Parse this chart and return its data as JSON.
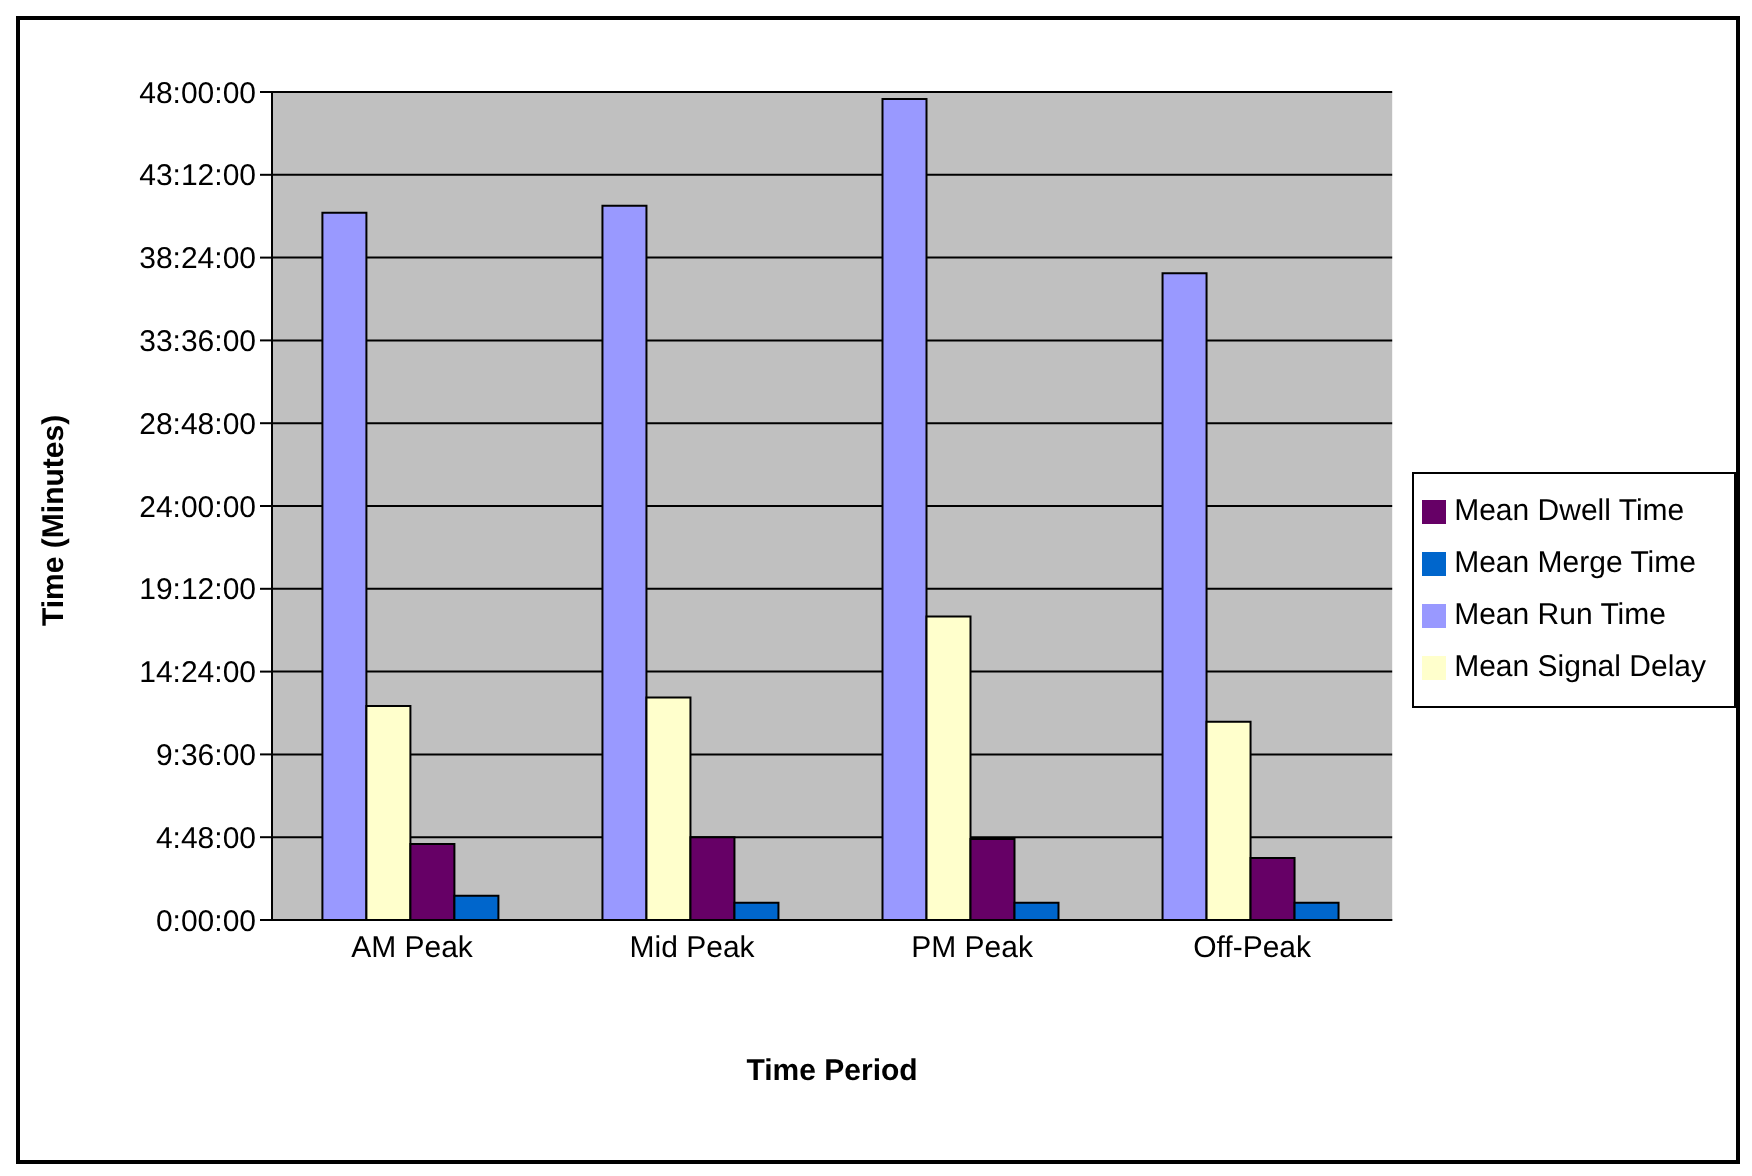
{
  "chart_data": {
    "type": "bar",
    "xlabel": "Time Period",
    "ylabel": "Time (Minutes)",
    "categories": [
      "AM Peak",
      "Mid Peak",
      "PM Peak",
      "Off-Peak"
    ],
    "series": [
      {
        "name": "Mean Run Time",
        "color": "#9999ff",
        "values": [
          41.0,
          41.4,
          47.6,
          37.5
        ]
      },
      {
        "name": "Mean Signal Delay",
        "color": "#ffffcc",
        "values": [
          12.4,
          12.9,
          17.6,
          11.5
        ]
      },
      {
        "name": "Mean Dwell Time",
        "color": "#660066",
        "values": [
          4.4,
          4.8,
          4.7,
          3.6
        ]
      },
      {
        "name": "Mean Merge Time",
        "color": "#0066cc",
        "values": [
          1.4,
          1.0,
          1.0,
          1.0
        ]
      }
    ],
    "ylim": [
      0,
      48
    ],
    "yticks": [
      {
        "value": 0,
        "label": "0:00:00"
      },
      {
        "value": 4.8,
        "label": "4:48:00"
      },
      {
        "value": 9.6,
        "label": "9:36:00"
      },
      {
        "value": 14.4,
        "label": "14:24:00"
      },
      {
        "value": 19.2,
        "label": "19:12:00"
      },
      {
        "value": 24,
        "label": "24:00:00"
      },
      {
        "value": 28.8,
        "label": "28:48:00"
      },
      {
        "value": 33.6,
        "label": "33:36:00"
      },
      {
        "value": 38.4,
        "label": "38:24:00"
      },
      {
        "value": 43.2,
        "label": "43:12:00"
      },
      {
        "value": 48,
        "label": "48:00:00"
      }
    ],
    "grid": "y",
    "legend": "right"
  }
}
